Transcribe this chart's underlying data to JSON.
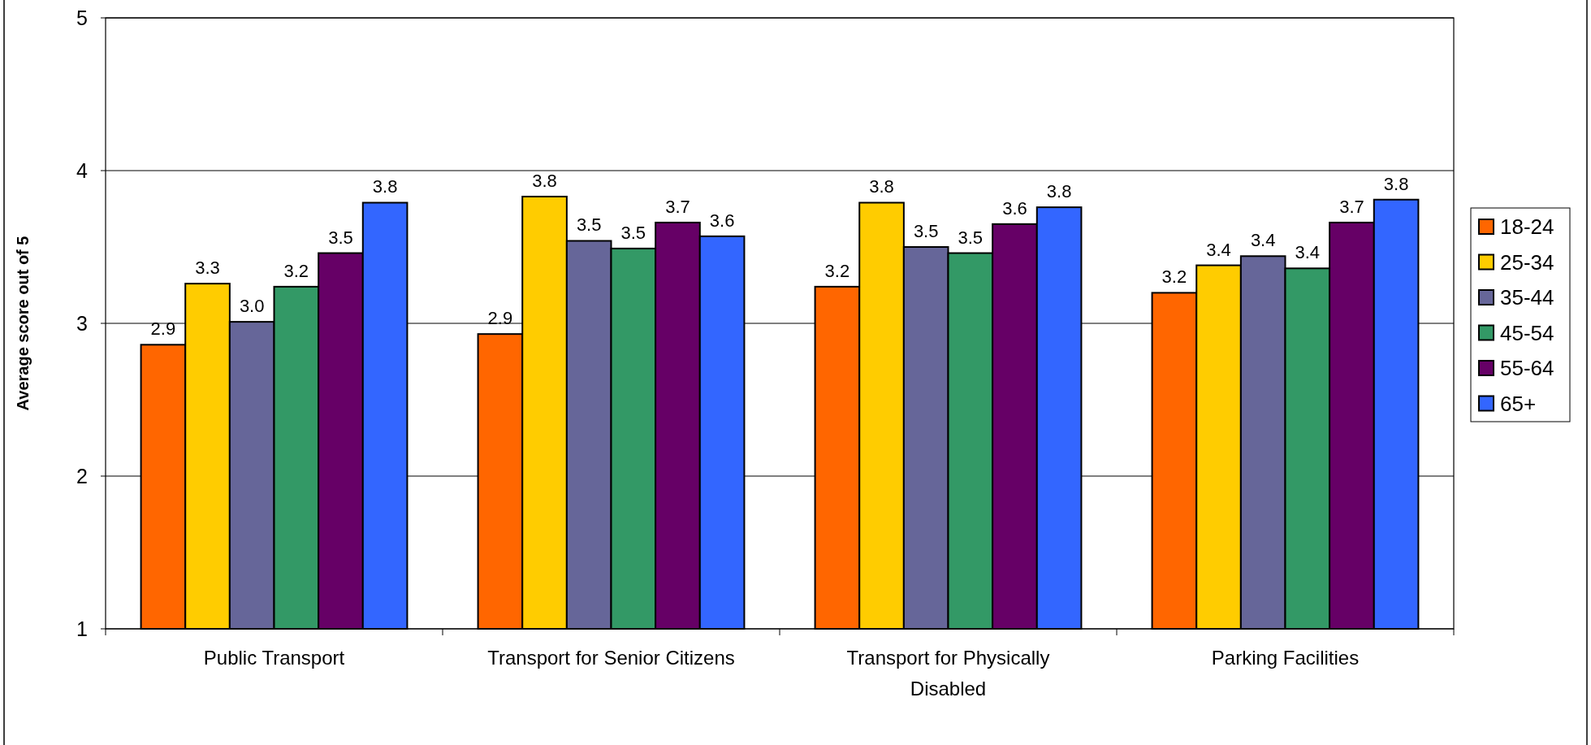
{
  "chart_data": {
    "type": "bar",
    "ylabel": "Average score out of 5",
    "categories": [
      "Public Transport",
      "Transport for Senior Citizens",
      "Transport for Physically Disabled",
      "Parking Facilities"
    ],
    "series": [
      {
        "name": "18-24",
        "color": "#ff6600",
        "values": [
          2.86,
          2.93,
          3.24,
          3.2
        ],
        "value_labels": [
          "2.9",
          "2.9",
          "3.2",
          "3.2"
        ]
      },
      {
        "name": "25-34",
        "color": "#ffcc00",
        "values": [
          3.26,
          3.83,
          3.79,
          3.38
        ],
        "value_labels": [
          "3.3",
          "3.8",
          "3.8",
          "3.4"
        ]
      },
      {
        "name": "35-44",
        "color": "#666699",
        "values": [
          3.01,
          3.54,
          3.5,
          3.44
        ],
        "value_labels": [
          "3.0",
          "3.5",
          "3.5",
          "3.4"
        ]
      },
      {
        "name": "45-54",
        "color": "#339966",
        "values": [
          3.24,
          3.49,
          3.46,
          3.36
        ],
        "value_labels": [
          "3.2",
          "3.5",
          "3.5",
          "3.4"
        ]
      },
      {
        "name": "55-64",
        "color": "#660066",
        "values": [
          3.46,
          3.66,
          3.65,
          3.66
        ],
        "value_labels": [
          "3.5",
          "3.7",
          "3.6",
          "3.7"
        ]
      },
      {
        "name": "65+",
        "color": "#3366ff",
        "values": [
          3.79,
          3.57,
          3.76,
          3.81
        ],
        "value_labels": [
          "3.8",
          "3.6",
          "3.8",
          "3.8"
        ]
      }
    ],
    "ylim": [
      1,
      5
    ],
    "yticks": [
      1,
      2,
      3,
      4,
      5
    ],
    "grid": "y",
    "legend": "right"
  }
}
